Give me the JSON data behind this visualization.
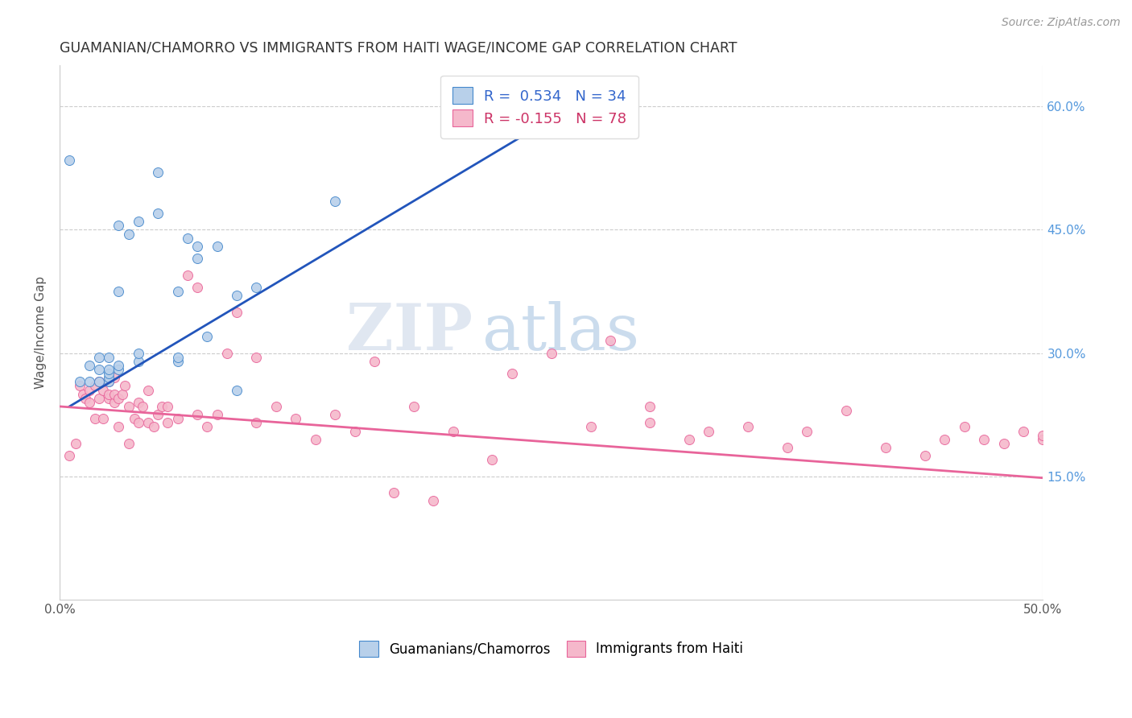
{
  "title": "GUAMANIAN/CHAMORRO VS IMMIGRANTS FROM HAITI WAGE/INCOME GAP CORRELATION CHART",
  "source": "Source: ZipAtlas.com",
  "ylabel": "Wage/Income Gap",
  "xlim": [
    0.0,
    0.5
  ],
  "ylim": [
    0.0,
    0.65
  ],
  "x_tick_positions": [
    0.0,
    0.5
  ],
  "x_tick_labels": [
    "0.0%",
    "50.0%"
  ],
  "y_ticks": [
    0.15,
    0.3,
    0.45,
    0.6
  ],
  "y_tick_labels": [
    "15.0%",
    "30.0%",
    "45.0%",
    "60.0%"
  ],
  "blue_R": 0.534,
  "blue_N": 34,
  "pink_R": -0.155,
  "pink_N": 78,
  "blue_color": "#b8d0ea",
  "blue_edge_color": "#4488cc",
  "pink_color": "#f5b8cb",
  "pink_edge_color": "#e8649a",
  "blue_line_color": "#2255bb",
  "pink_line_color": "#e8649a",
  "watermark_zip": "ZIP",
  "watermark_atlas": "atlas",
  "blue_scatter_x": [
    0.005,
    0.01,
    0.015,
    0.015,
    0.02,
    0.02,
    0.02,
    0.025,
    0.025,
    0.025,
    0.025,
    0.025,
    0.03,
    0.03,
    0.03,
    0.03,
    0.035,
    0.04,
    0.04,
    0.04,
    0.05,
    0.05,
    0.06,
    0.06,
    0.06,
    0.065,
    0.07,
    0.07,
    0.075,
    0.08,
    0.09,
    0.09,
    0.1,
    0.14
  ],
  "blue_scatter_y": [
    0.535,
    0.265,
    0.265,
    0.285,
    0.265,
    0.28,
    0.295,
    0.265,
    0.27,
    0.275,
    0.28,
    0.295,
    0.28,
    0.285,
    0.375,
    0.455,
    0.445,
    0.29,
    0.3,
    0.46,
    0.47,
    0.52,
    0.29,
    0.295,
    0.375,
    0.44,
    0.415,
    0.43,
    0.32,
    0.43,
    0.255,
    0.37,
    0.38,
    0.485
  ],
  "pink_scatter_x": [
    0.005,
    0.008,
    0.01,
    0.012,
    0.013,
    0.015,
    0.015,
    0.018,
    0.018,
    0.02,
    0.02,
    0.022,
    0.022,
    0.025,
    0.025,
    0.025,
    0.028,
    0.028,
    0.028,
    0.03,
    0.03,
    0.032,
    0.033,
    0.035,
    0.035,
    0.038,
    0.04,
    0.04,
    0.042,
    0.045,
    0.045,
    0.048,
    0.05,
    0.052,
    0.055,
    0.055,
    0.06,
    0.065,
    0.07,
    0.07,
    0.075,
    0.08,
    0.085,
    0.09,
    0.1,
    0.1,
    0.11,
    0.12,
    0.13,
    0.14,
    0.15,
    0.16,
    0.17,
    0.18,
    0.19,
    0.2,
    0.22,
    0.23,
    0.25,
    0.27,
    0.28,
    0.3,
    0.3,
    0.32,
    0.33,
    0.35,
    0.37,
    0.38,
    0.4,
    0.42,
    0.44,
    0.45,
    0.46,
    0.47,
    0.48,
    0.49,
    0.5,
    0.5
  ],
  "pink_scatter_y": [
    0.175,
    0.19,
    0.26,
    0.25,
    0.245,
    0.24,
    0.255,
    0.22,
    0.26,
    0.245,
    0.265,
    0.22,
    0.255,
    0.245,
    0.25,
    0.265,
    0.24,
    0.25,
    0.27,
    0.21,
    0.245,
    0.25,
    0.26,
    0.19,
    0.235,
    0.22,
    0.215,
    0.24,
    0.235,
    0.215,
    0.255,
    0.21,
    0.225,
    0.235,
    0.215,
    0.235,
    0.22,
    0.395,
    0.225,
    0.38,
    0.21,
    0.225,
    0.3,
    0.35,
    0.215,
    0.295,
    0.235,
    0.22,
    0.195,
    0.225,
    0.205,
    0.29,
    0.13,
    0.235,
    0.12,
    0.205,
    0.17,
    0.275,
    0.3,
    0.21,
    0.315,
    0.215,
    0.235,
    0.195,
    0.205,
    0.21,
    0.185,
    0.205,
    0.23,
    0.185,
    0.175,
    0.195,
    0.21,
    0.195,
    0.19,
    0.205,
    0.195,
    0.2
  ],
  "blue_line_x": [
    0.005,
    0.285
  ],
  "blue_line_y": [
    0.235,
    0.635
  ],
  "pink_line_x": [
    0.0,
    0.5
  ],
  "pink_line_y": [
    0.235,
    0.148
  ]
}
